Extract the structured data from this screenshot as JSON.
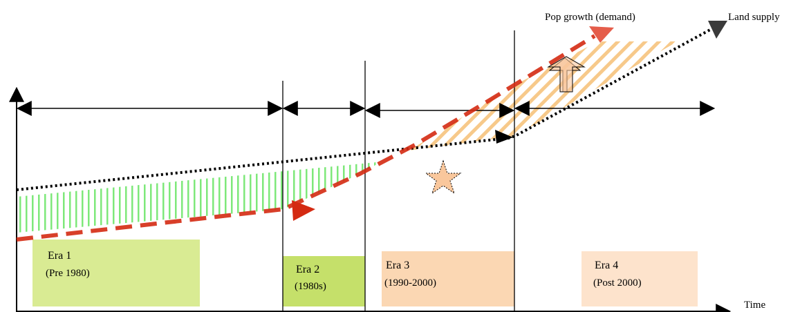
{
  "diagram": {
    "labels": {
      "pop_growth": "Pop growth (demand)",
      "land_supply": "Land supply",
      "time": "Time"
    },
    "eras": [
      {
        "title": "Era 1",
        "paren_open": "(",
        "subtitle": "Pre 1980)",
        "color": "#d9eb93"
      },
      {
        "title": "Era 2",
        "paren_open": "",
        "subtitle": "(1980s)",
        "color": "#c5e06a"
      },
      {
        "title": "Era 3",
        "paren_open": "",
        "subtitle": "(1990-2000)",
        "color": "#fbd7b3"
      },
      {
        "title": "Era 4",
        "paren_open": "",
        "subtitle": "(Post 2000)",
        "color": "#fde3cc"
      }
    ],
    "colors": {
      "demand_line": "#d42a12",
      "supply_line": "#000000",
      "surplus_hatch": "#7ee87a",
      "shortage_hatch": "#f7c98a",
      "star": "#f9c79c",
      "arrow_fill": "#f9c79c"
    }
  }
}
